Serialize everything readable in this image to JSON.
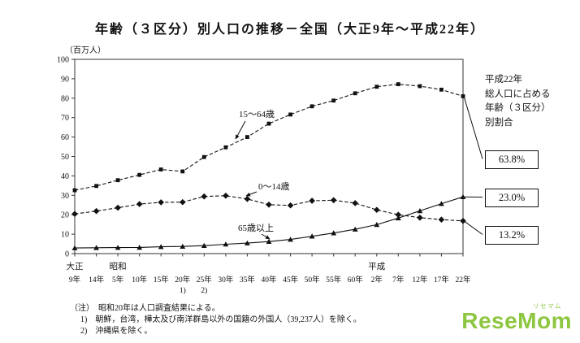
{
  "chart_data": {
    "type": "line",
    "title": "年齢（３区分）別人口の推移－全国（大正9年～平成22年）",
    "unit": "（百万人）",
    "ylim": [
      0,
      100
    ],
    "y_ticks": [
      0,
      10,
      20,
      30,
      40,
      50,
      60,
      70,
      80,
      90,
      100
    ],
    "x_labels": [
      "9年",
      "14年",
      "5年",
      "10年",
      "15年",
      "20年",
      "25年",
      "30年",
      "35年",
      "40年",
      "45年",
      "50年",
      "55年",
      "60年",
      "2年",
      "7年",
      "12年",
      "17年",
      "22年"
    ],
    "era_labels": [
      {
        "label": "大正",
        "tick": 0
      },
      {
        "label": "昭和",
        "tick": 2
      },
      {
        "label": "平成",
        "tick": 14
      }
    ],
    "tick_footnotes": [
      {
        "label": "1)",
        "tick": 5
      },
      {
        "label": "2)",
        "tick": 6
      }
    ],
    "grid": false,
    "legend": "inline-annotations",
    "series": [
      {
        "name": "15～64歳",
        "style": "dashed",
        "marker": "square",
        "values": [
          32.6,
          34.8,
          37.8,
          40.5,
          43.3,
          42.3,
          49.7,
          54.7,
          60.0,
          66.9,
          71.6,
          75.8,
          78.8,
          82.5,
          85.9,
          87.2,
          86.2,
          84.4,
          81.0
        ]
      },
      {
        "name": "0～14歳",
        "style": "dashed",
        "marker": "diamond",
        "values": [
          20.4,
          21.9,
          23.6,
          25.5,
          26.4,
          26.5,
          29.4,
          29.8,
          28.1,
          25.2,
          24.8,
          27.2,
          27.5,
          26.0,
          22.5,
          20.0,
          18.5,
          17.5,
          16.8
        ]
      },
      {
        "name": "65歳以上",
        "style": "solid",
        "marker": "triangle",
        "values": [
          2.9,
          3.0,
          3.1,
          3.2,
          3.5,
          3.7,
          4.1,
          4.8,
          5.4,
          6.2,
          7.3,
          8.9,
          10.6,
          12.5,
          14.9,
          18.3,
          22.0,
          25.7,
          29.2
        ]
      }
    ]
  },
  "right_panel": {
    "caption": "平成22年\n総人口に占める\n年齢（３区分）\n別割合",
    "boxes": [
      {
        "label": "63.8%",
        "series": "15～64歳"
      },
      {
        "label": "23.0%",
        "series": "65歳以上"
      },
      {
        "label": "13.2%",
        "series": "0～14歳"
      }
    ]
  },
  "notes": [
    "（注）　昭和20年は人口調査結果による。",
    "1)　朝鮮，台湾，樺太及び南洋群島以外の国籍の外国人（39,237人）を除く。",
    "2)　沖縄県を除く。"
  ],
  "logo": {
    "text": "ReseMom",
    "ruby": "リセマム",
    "color": "#8dc63f"
  }
}
